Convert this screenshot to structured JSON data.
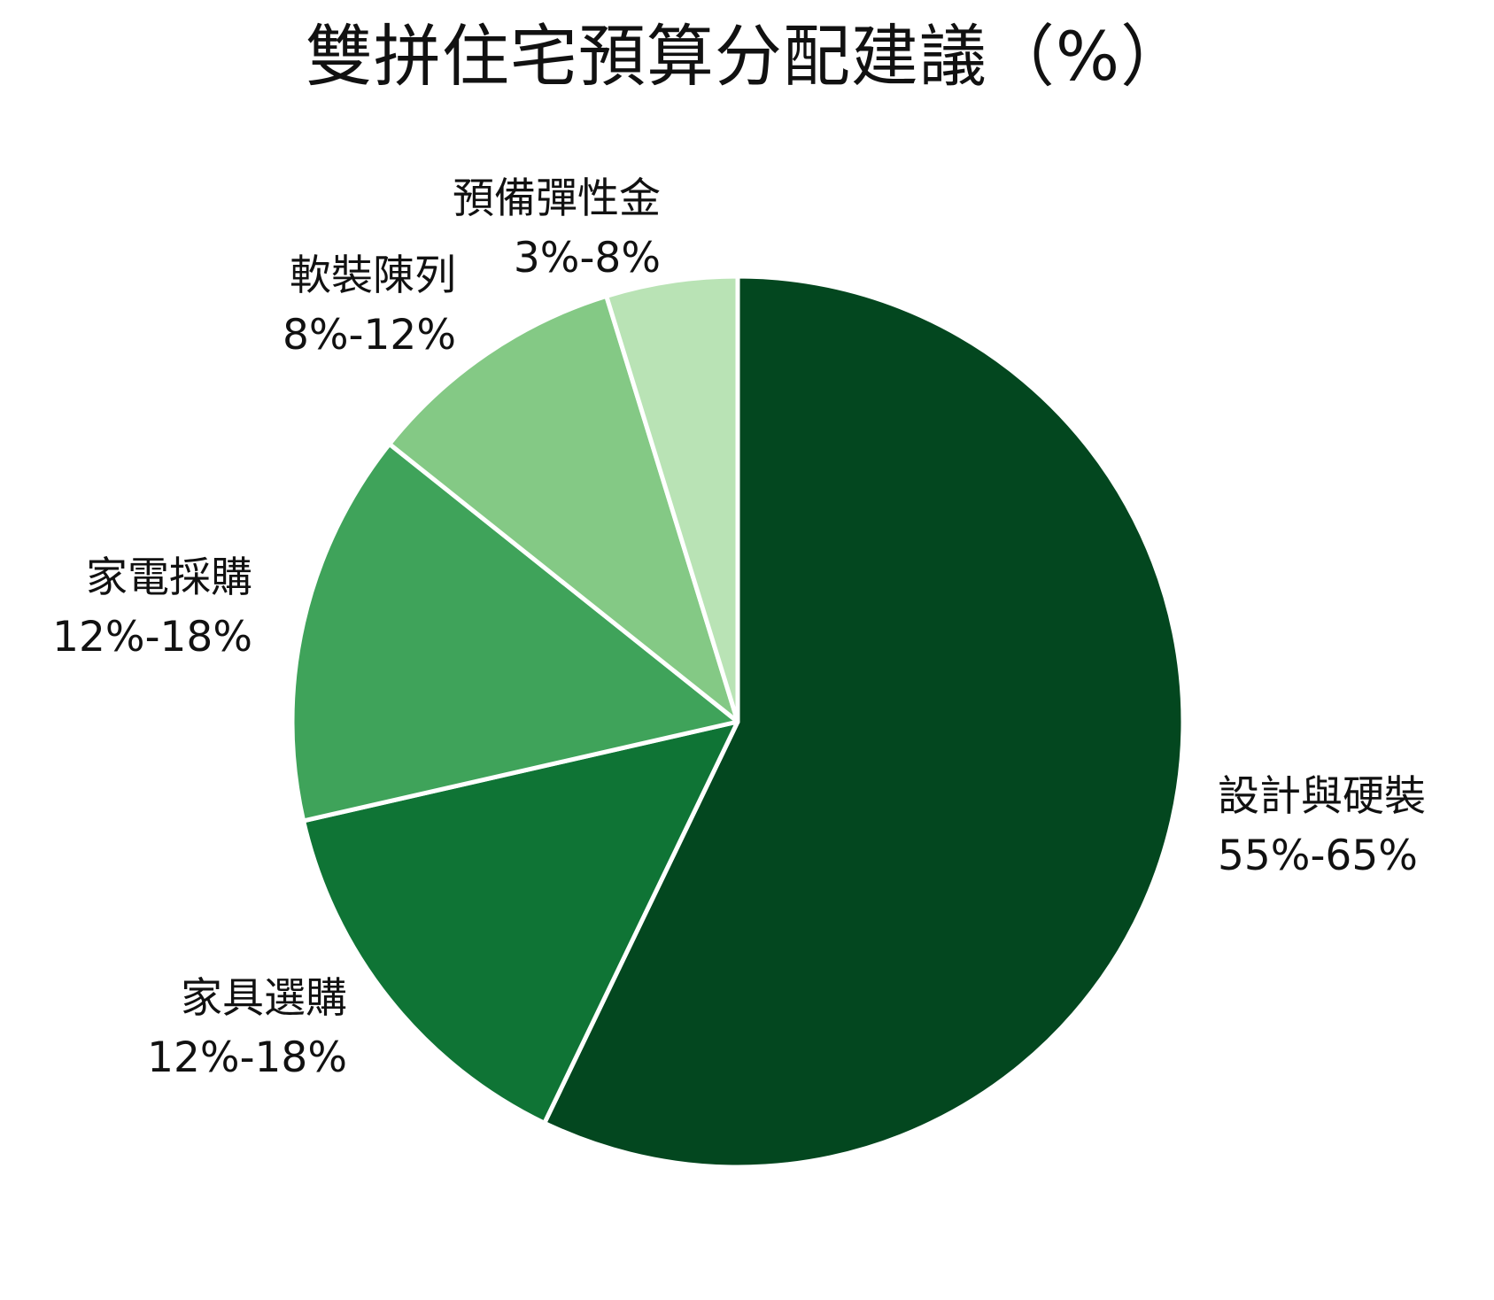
{
  "chart_data": {
    "type": "pie",
    "title": "雙拼住宅預算分配建議（%）",
    "slices": [
      {
        "name": "設計與硬裝",
        "range": "55%-65%",
        "value": 60,
        "color": "#03471f"
      },
      {
        "name": "家具選購",
        "range": "12%-18%",
        "value": 15,
        "color": "#0f7435"
      },
      {
        "name": "家電採購",
        "range": "12%-18%",
        "value": 15,
        "color": "#3fa35a"
      },
      {
        "name": "軟裝陳列",
        "range": "8%-12%",
        "value": 10,
        "color": "#84c985"
      },
      {
        "name": "預備彈性金",
        "range": "3%-8%",
        "value": 5,
        "color": "#b9e3b5"
      }
    ],
    "start_angle": "12 o'clock",
    "direction": "clockwise",
    "legend": "none"
  }
}
